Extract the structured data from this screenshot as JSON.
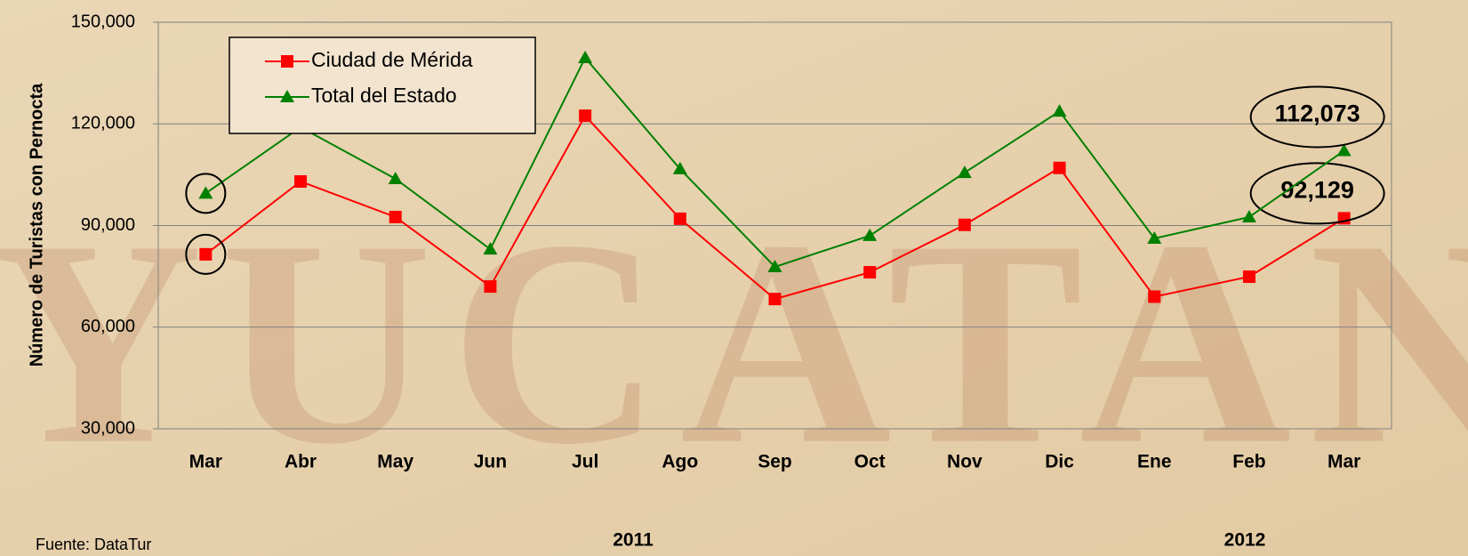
{
  "chart_data": {
    "type": "line",
    "watermark": "YUCATAN",
    "y_axis_label": "Número de Turistas con Pernocta",
    "source": "Fuente: DataTur",
    "year_labels": [
      "2011",
      "2012"
    ],
    "categories": [
      "Mar",
      "Abr",
      "May",
      "Jun",
      "Jul",
      "Ago",
      "Sep",
      "Oct",
      "Nov",
      "Dic",
      "Ene",
      "Feb",
      "Mar"
    ],
    "series": [
      {
        "name": "Ciudad de Mérida",
        "color": "#ff0000",
        "marker": "square",
        "values": [
          81500,
          103000,
          92500,
          72000,
          122400,
          92000,
          68300,
          76200,
          90200,
          107000,
          69000,
          74900,
          92129
        ],
        "value_labels": [
          null,
          null,
          null,
          null,
          null,
          null,
          null,
          null,
          null,
          null,
          null,
          null,
          "92,129"
        ]
      },
      {
        "name": "Total del Estado",
        "color": "#008000",
        "marker": "triangle",
        "values": [
          99500,
          119000,
          103800,
          83000,
          139500,
          106700,
          77800,
          87000,
          105600,
          123700,
          86200,
          92500,
          112073
        ],
        "value_labels": [
          null,
          null,
          null,
          null,
          null,
          null,
          null,
          null,
          null,
          null,
          null,
          null,
          "112,073"
        ]
      }
    ],
    "ylim": [
      30000,
      150000
    ],
    "yticks": [
      {
        "value": 30000,
        "label": "30,000"
      },
      {
        "value": 60000,
        "label": "60,000"
      },
      {
        "value": 90000,
        "label": "90,000"
      },
      {
        "value": 120000,
        "label": "120,000"
      },
      {
        "value": 150000,
        "label": "150,000"
      }
    ],
    "grid": true,
    "legend": "top-left"
  }
}
